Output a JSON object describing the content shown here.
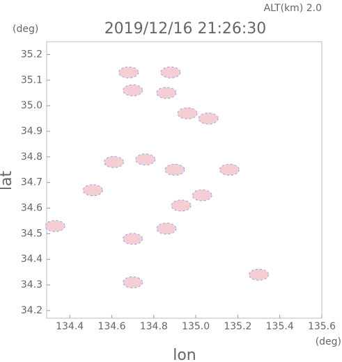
{
  "chart_data": {
    "type": "scatter",
    "title": "2019/12/16 21:26:30",
    "subtitle": "ALT(km) 2.0",
    "y_unit": "(deg)",
    "x_unit": "(deg)",
    "x_label": "lon",
    "y_label": "lat",
    "x": [
      134.68,
      134.88,
      134.7,
      134.86,
      134.96,
      135.06,
      134.76,
      134.61,
      134.9,
      135.16,
      135.03,
      134.93,
      134.86,
      134.7,
      134.33,
      135.3,
      134.7,
      134.51
    ],
    "y": [
      35.13,
      35.13,
      35.06,
      35.05,
      34.97,
      34.95,
      34.79,
      34.78,
      34.75,
      34.75,
      34.65,
      34.61,
      34.52,
      34.48,
      34.53,
      34.34,
      34.31,
      34.67
    ],
    "color": "#f4c9cf",
    "xlim": [
      134.29,
      135.6
    ],
    "ylim": [
      34.17,
      35.25
    ],
    "xticks": [
      134.4,
      134.6,
      134.8,
      {
        "value": 135.0,
        "label": "135.0"
      },
      135.2,
      135.4,
      135.6
    ],
    "yticks": [
      34.2,
      34.3,
      34.4,
      34.5,
      34.6,
      34.7,
      34.8,
      34.9,
      {
        "value": 35.0,
        "label": "35.0"
      },
      35.1,
      35.2
    ]
  }
}
